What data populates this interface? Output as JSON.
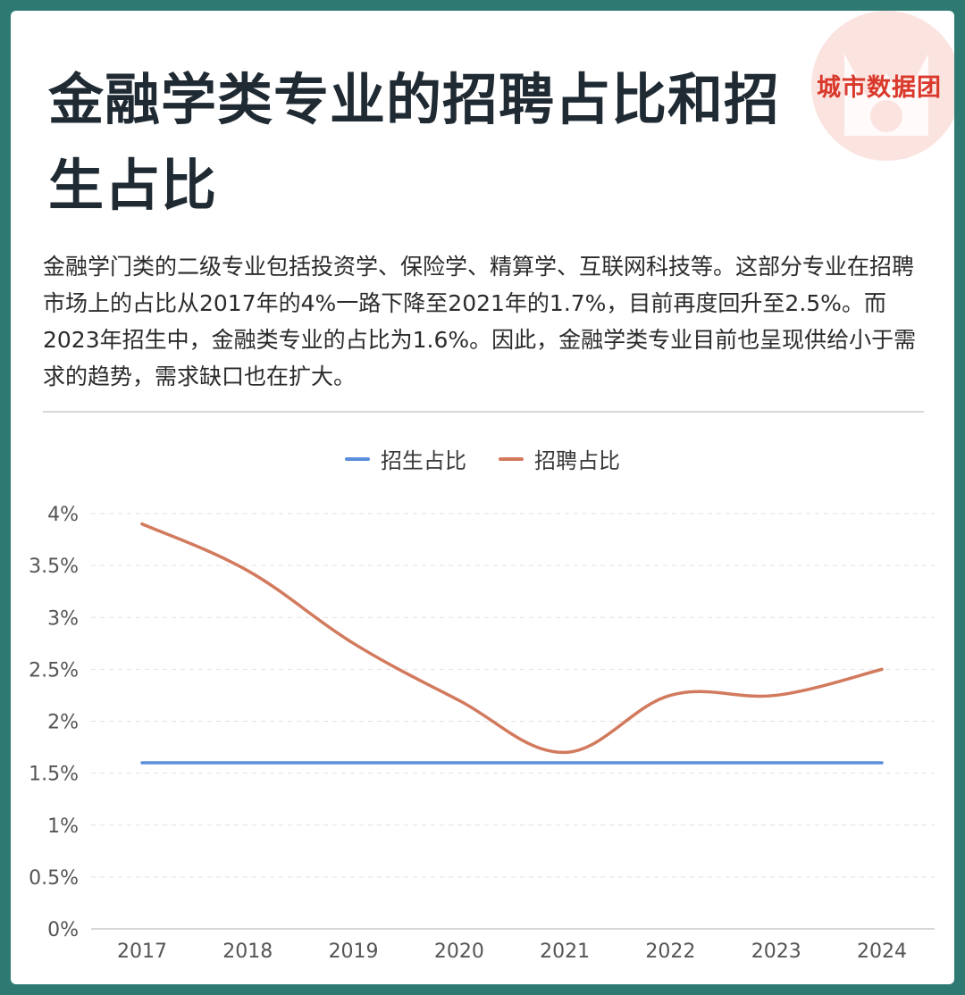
{
  "title": "金融学类专业的招聘占比和招生占比",
  "brand": {
    "name": "城市数据团"
  },
  "description": "金融学门类的二级专业包括投资学、保险学、精算学、互联网科技等。这部分专业在招聘市场上的占比从2017年的4%一路下降至2021年的1.7%，目前再度回升至2.5%。而2023年招生中，金融类专业的占比为1.6%。因此，金融学类专业目前也呈现供给小于需求的趋势，需求缺口也在扩大。",
  "colors": {
    "background": "#2e7a72",
    "enroll": "#5b8fdc",
    "recruit": "#d27a5d",
    "brand": "#d9382b"
  },
  "chart_data": {
    "type": "line",
    "categories": [
      "2017",
      "2018",
      "2019",
      "2020",
      "2021",
      "2022",
      "2023",
      "2024"
    ],
    "series": [
      {
        "name": "招生占比",
        "values": [
          1.6,
          1.6,
          1.6,
          1.6,
          1.6,
          1.6,
          1.6,
          1.6
        ]
      },
      {
        "name": "招聘占比",
        "values": [
          3.9,
          3.45,
          2.75,
          2.2,
          1.7,
          2.25,
          2.25,
          2.5
        ]
      }
    ],
    "yticks": [
      "0%",
      "0.5%",
      "1%",
      "1.5%",
      "2%",
      "2.5%",
      "3%",
      "3.5%",
      "4%"
    ],
    "ylim": [
      0,
      4
    ],
    "grid": true,
    "smooth": true,
    "legend_position": "top-center"
  }
}
